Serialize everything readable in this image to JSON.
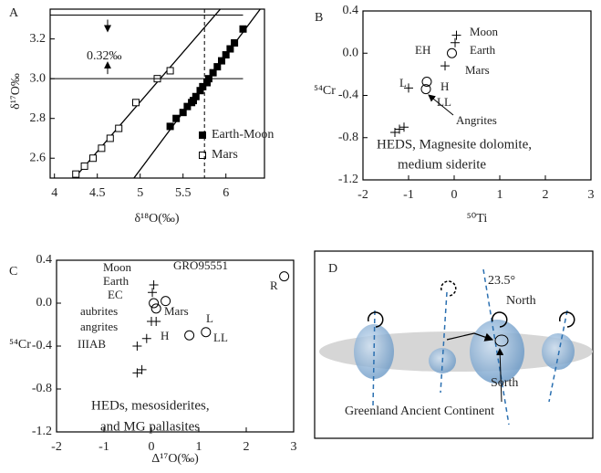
{
  "chart_data": [
    {
      "type": "scatter",
      "panel": "A",
      "x_label": "δ¹⁸O(‰)",
      "y_label": "δ¹⁷O‰",
      "xlim": [
        3.95,
        6.45
      ],
      "ylim": [
        2.5,
        3.35
      ],
      "xticks": [
        4,
        4.5,
        5,
        5.5,
        6
      ],
      "yticks": [
        2.6,
        2.8,
        {
          "value": 3,
          "label": "3.0"
        },
        3.2
      ],
      "series": [
        {
          "name": "Earth-Moon",
          "marker": "filled-square",
          "color": "#000000",
          "x": [
            5.35,
            5.42,
            5.5,
            5.55,
            5.6,
            5.62,
            5.65,
            5.7,
            5.73,
            5.78,
            5.8,
            5.85,
            5.9,
            5.95,
            6.0,
            6.05,
            6.1,
            6.2
          ],
          "y": [
            2.76,
            2.8,
            2.83,
            2.86,
            2.88,
            2.89,
            2.91,
            2.94,
            2.96,
            2.98,
            3.0,
            3.03,
            3.06,
            3.09,
            3.12,
            3.15,
            3.18,
            3.25
          ]
        },
        {
          "name": "Mars",
          "marker": "open-square",
          "color": "#000000",
          "x": [
            4.25,
            4.35,
            4.45,
            4.55,
            4.65,
            4.75,
            4.95,
            5.2,
            5.35
          ],
          "y": [
            2.52,
            2.56,
            2.6,
            2.65,
            2.7,
            2.75,
            2.88,
            3.0,
            3.04
          ]
        }
      ],
      "hlines": [
        3.32,
        3.0
      ],
      "vline": 5.75,
      "annotation": "0.32‰"
    },
    {
      "type": "scatter",
      "panel": "B",
      "x_label": "⁵⁰Ti",
      "y_label": "⁵⁴Cr",
      "xlim": [
        -2,
        3
      ],
      "ylim": [
        -1.2,
        0.4
      ],
      "xticks": [
        -2,
        -1,
        0,
        1,
        2,
        3
      ],
      "yticks": [
        0.4,
        {
          "value": 0,
          "label": "0.0"
        },
        -0.4,
        -0.8,
        -1.2
      ],
      "points": [
        {
          "x": 0.05,
          "y": 0.17,
          "marker": "plus"
        },
        {
          "x": 0.02,
          "y": 0.1,
          "marker": "plus"
        },
        {
          "x": -0.05,
          "y": 0.0,
          "marker": "circle"
        },
        {
          "x": -0.2,
          "y": -0.12,
          "marker": "plus"
        },
        {
          "x": -1.0,
          "y": -0.33,
          "marker": "plus"
        },
        {
          "x": -0.6,
          "y": -0.27,
          "marker": "circle"
        },
        {
          "x": -0.62,
          "y": -0.34,
          "marker": "circle"
        },
        {
          "x": -1.3,
          "y": -0.75,
          "marker": "plus"
        },
        {
          "x": -1.2,
          "y": -0.72,
          "marker": "plus"
        },
        {
          "x": -1.1,
          "y": -0.7,
          "marker": "plus"
        }
      ],
      "annotations": [
        "Moon",
        "Earth",
        "EH",
        "Mars",
        "L",
        "H",
        "LL",
        "Angrites",
        "HEDS, Magnesite dolomite,",
        "medium siderite"
      ]
    },
    {
      "type": "scatter",
      "panel": "C",
      "x_label": "Δ¹⁷O(‰)",
      "y_label": "⁵⁴Cr",
      "xlim": [
        -2,
        3
      ],
      "ylim": [
        -1.2,
        0.4
      ],
      "xticks": [
        -2,
        -1,
        0,
        1,
        2,
        3
      ],
      "yticks": [
        0.4,
        {
          "value": 0,
          "label": "0.0"
        },
        -0.4,
        -0.8,
        -1.2
      ],
      "points": [
        {
          "x": 0.05,
          "y": 0.17,
          "marker": "plus"
        },
        {
          "x": 0.02,
          "y": 0.1,
          "marker": "plus"
        },
        {
          "x": 0.05,
          "y": 0.0,
          "marker": "circle"
        },
        {
          "x": 0.1,
          "y": -0.05,
          "marker": "circle"
        },
        {
          "x": 0.3,
          "y": 0.02,
          "marker": "circle"
        },
        {
          "x": 2.8,
          "y": 0.25,
          "marker": "circle"
        },
        {
          "x": 0.0,
          "y": -0.17,
          "marker": "plus"
        },
        {
          "x": 0.1,
          "y": -0.17,
          "marker": "plus"
        },
        {
          "x": -0.1,
          "y": -0.33,
          "marker": "plus"
        },
        {
          "x": -0.3,
          "y": -0.4,
          "marker": "plus"
        },
        {
          "x": 0.8,
          "y": -0.3,
          "marker": "circle"
        },
        {
          "x": 1.15,
          "y": -0.27,
          "marker": "circle"
        },
        {
          "x": -0.3,
          "y": -0.65,
          "marker": "plus"
        },
        {
          "x": -0.2,
          "y": -0.62,
          "marker": "plus"
        }
      ],
      "annotations": [
        "Moon",
        "Earth",
        "EC",
        "GRO95551",
        "R",
        "aubrites",
        "Mars",
        "angrites",
        "IIIAB",
        "H",
        "L",
        "LL",
        "HEDs, mesosiderites,",
        "and MG pallasites"
      ]
    }
  ],
  "diagram": {
    "panel": "D",
    "angle": "23.5°",
    "north": "North",
    "south": "Sorth",
    "caption": "Greenland Ancient Continent"
  }
}
